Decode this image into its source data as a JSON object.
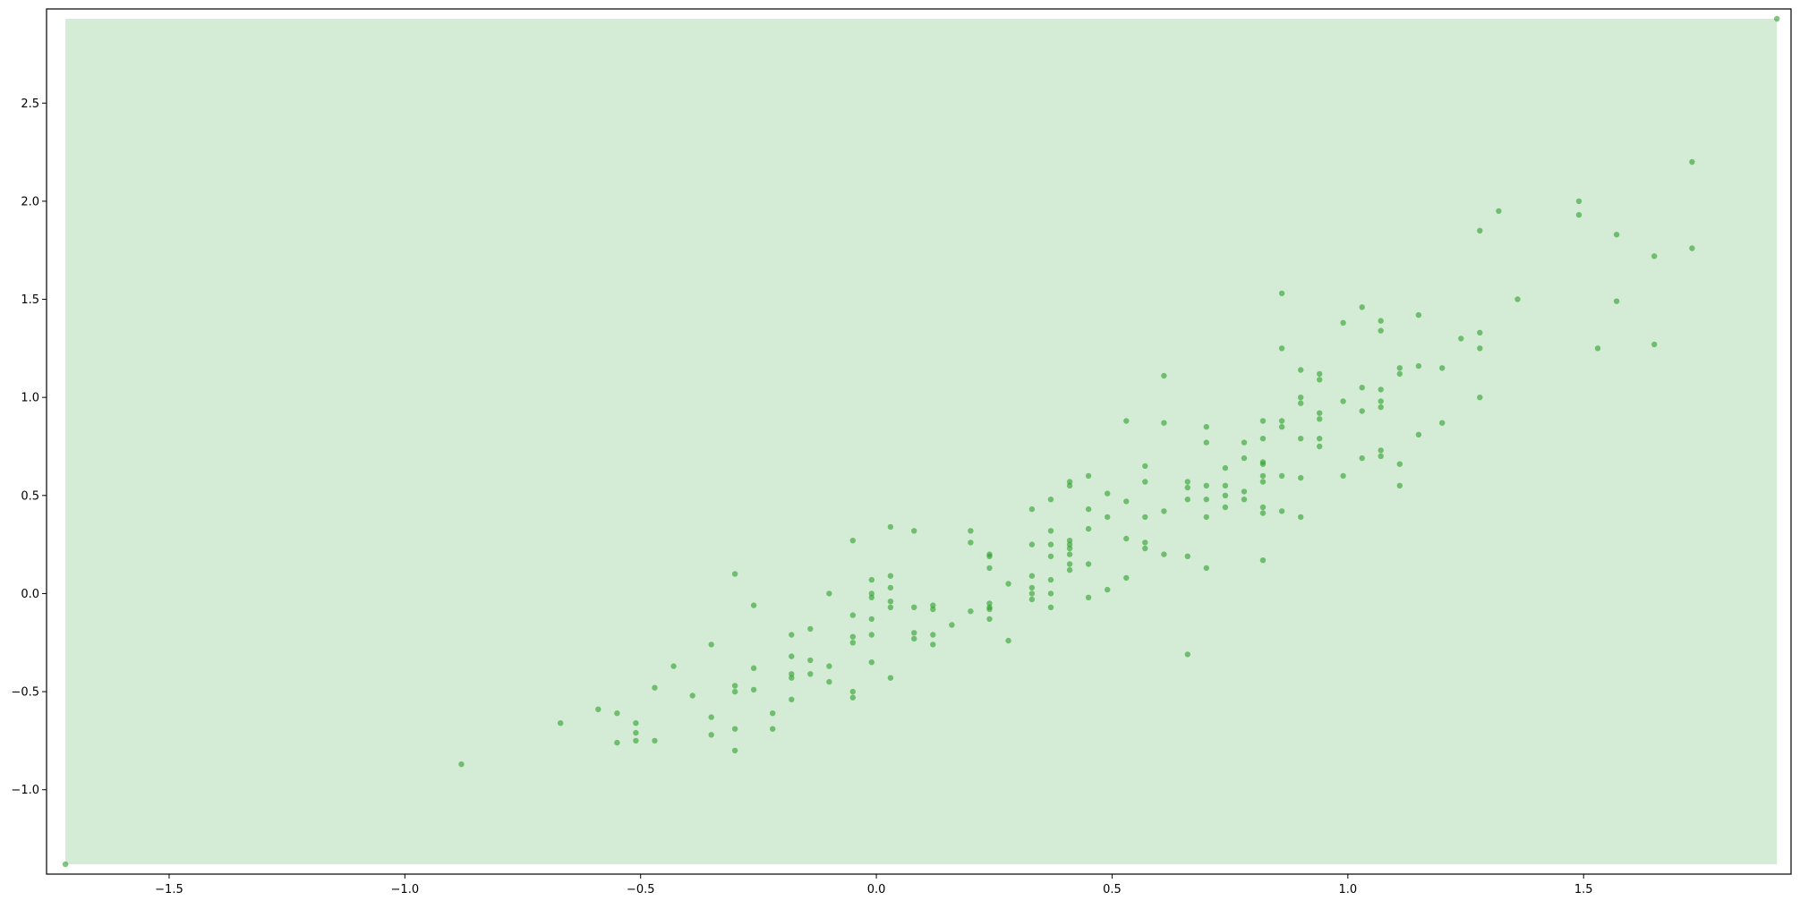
{
  "chart_data": {
    "type": "scatter",
    "title": "",
    "xlabel": "",
    "ylabel": "",
    "xlim": [
      -1.76,
      1.94
    ],
    "ylim": [
      -1.43,
      2.98
    ],
    "grid": false,
    "legend": "none",
    "x_ticks": [
      -1.5,
      -1.0,
      -0.5,
      0.0,
      0.5,
      1.0,
      1.5
    ],
    "x_tick_labels": [
      "−1.5",
      "−1.0",
      "−0.5",
      "0.0",
      "0.5",
      "1.0",
      "1.5"
    ],
    "y_ticks": [
      -1.0,
      -0.5,
      0.0,
      0.5,
      1.0,
      1.5,
      2.0,
      2.5
    ],
    "y_tick_labels": [
      "−1.0",
      "−0.5",
      "0.0",
      "0.5",
      "1.0",
      "1.5",
      "2.0",
      "2.5"
    ],
    "shaded_region": {
      "x": [
        -1.72,
        1.91
      ],
      "y": [
        -1.38,
        2.93
      ],
      "color": "#d4ecd5"
    },
    "colors": {
      "point": "#2ca02c",
      "region": "#d4ecd5"
    },
    "series": [
      {
        "values": [
          [
            -1.72,
            -1.38
          ],
          [
            1.91,
            2.93
          ],
          [
            -0.88,
            -0.87
          ],
          [
            -0.67,
            -0.66
          ],
          [
            -0.59,
            -0.59
          ],
          [
            -0.55,
            -0.61
          ],
          [
            -0.55,
            -0.76
          ],
          [
            -0.51,
            -0.66
          ],
          [
            -0.51,
            -0.71
          ],
          [
            -0.51,
            -0.75
          ],
          [
            -0.47,
            -0.48
          ],
          [
            -0.47,
            -0.75
          ],
          [
            -0.43,
            -0.37
          ],
          [
            -0.39,
            -0.52
          ],
          [
            -0.35,
            -0.26
          ],
          [
            -0.35,
            -0.63
          ],
          [
            -0.35,
            -0.72
          ],
          [
            -0.3,
            0.1
          ],
          [
            -0.3,
            -0.47
          ],
          [
            -0.3,
            -0.5
          ],
          [
            -0.3,
            -0.69
          ],
          [
            -0.3,
            -0.8
          ],
          [
            -0.26,
            -0.06
          ],
          [
            -0.26,
            -0.38
          ],
          [
            -0.26,
            -0.49
          ],
          [
            -0.22,
            -0.61
          ],
          [
            -0.22,
            -0.69
          ],
          [
            -0.18,
            -0.21
          ],
          [
            -0.18,
            -0.32
          ],
          [
            -0.18,
            -0.41
          ],
          [
            -0.18,
            -0.43
          ],
          [
            -0.18,
            -0.54
          ],
          [
            -0.14,
            -0.18
          ],
          [
            -0.14,
            -0.34
          ],
          [
            -0.14,
            -0.41
          ],
          [
            -0.1,
            0.0
          ],
          [
            -0.1,
            -0.37
          ],
          [
            -0.1,
            -0.45
          ],
          [
            -0.05,
            0.27
          ],
          [
            -0.05,
            -0.11
          ],
          [
            -0.05,
            -0.22
          ],
          [
            -0.05,
            -0.25
          ],
          [
            -0.05,
            -0.5
          ],
          [
            -0.05,
            -0.53
          ],
          [
            -0.01,
            0.07
          ],
          [
            -0.01,
            0.0
          ],
          [
            -0.01,
            -0.02
          ],
          [
            -0.01,
            -0.13
          ],
          [
            -0.01,
            -0.21
          ],
          [
            -0.01,
            -0.35
          ],
          [
            0.03,
            0.34
          ],
          [
            0.03,
            0.09
          ],
          [
            0.03,
            0.03
          ],
          [
            0.03,
            -0.04
          ],
          [
            0.03,
            -0.07
          ],
          [
            0.03,
            -0.43
          ],
          [
            0.08,
            0.32
          ],
          [
            0.08,
            -0.07
          ],
          [
            0.08,
            -0.2
          ],
          [
            0.08,
            -0.23
          ],
          [
            0.12,
            -0.06
          ],
          [
            0.12,
            -0.08
          ],
          [
            0.12,
            -0.21
          ],
          [
            0.12,
            -0.26
          ],
          [
            0.16,
            -0.16
          ],
          [
            0.2,
            0.32
          ],
          [
            0.2,
            0.26
          ],
          [
            0.2,
            -0.09
          ],
          [
            0.24,
            0.2
          ],
          [
            0.24,
            0.19
          ],
          [
            0.24,
            0.13
          ],
          [
            0.24,
            -0.05
          ],
          [
            0.24,
            -0.07
          ],
          [
            0.24,
            -0.08
          ],
          [
            0.24,
            -0.13
          ],
          [
            0.28,
            0.05
          ],
          [
            0.28,
            -0.24
          ],
          [
            0.33,
            0.43
          ],
          [
            0.33,
            0.25
          ],
          [
            0.33,
            0.09
          ],
          [
            0.33,
            0.03
          ],
          [
            0.33,
            0.0
          ],
          [
            0.33,
            -0.03
          ],
          [
            0.37,
            0.48
          ],
          [
            0.37,
            0.32
          ],
          [
            0.37,
            0.25
          ],
          [
            0.37,
            0.19
          ],
          [
            0.37,
            0.07
          ],
          [
            0.37,
            0.0
          ],
          [
            0.37,
            -0.07
          ],
          [
            0.41,
            0.57
          ],
          [
            0.41,
            0.55
          ],
          [
            0.41,
            0.27
          ],
          [
            0.41,
            0.25
          ],
          [
            0.41,
            0.23
          ],
          [
            0.41,
            0.2
          ],
          [
            0.41,
            0.15
          ],
          [
            0.41,
            0.12
          ],
          [
            0.45,
            0.6
          ],
          [
            0.45,
            0.43
          ],
          [
            0.45,
            0.33
          ],
          [
            0.45,
            0.15
          ],
          [
            0.45,
            -0.02
          ],
          [
            0.49,
            0.51
          ],
          [
            0.49,
            0.39
          ],
          [
            0.49,
            0.02
          ],
          [
            0.53,
            0.88
          ],
          [
            0.53,
            0.47
          ],
          [
            0.53,
            0.28
          ],
          [
            0.53,
            0.08
          ],
          [
            0.57,
            0.65
          ],
          [
            0.57,
            0.57
          ],
          [
            0.57,
            0.39
          ],
          [
            0.57,
            0.26
          ],
          [
            0.57,
            0.23
          ],
          [
            0.61,
            1.11
          ],
          [
            0.61,
            0.87
          ],
          [
            0.61,
            0.42
          ],
          [
            0.61,
            0.2
          ],
          [
            0.66,
            0.57
          ],
          [
            0.66,
            0.54
          ],
          [
            0.66,
            0.48
          ],
          [
            0.66,
            0.19
          ],
          [
            0.66,
            -0.31
          ],
          [
            0.7,
            0.85
          ],
          [
            0.7,
            0.77
          ],
          [
            0.7,
            0.55
          ],
          [
            0.7,
            0.48
          ],
          [
            0.7,
            0.39
          ],
          [
            0.7,
            0.13
          ],
          [
            0.74,
            0.64
          ],
          [
            0.74,
            0.55
          ],
          [
            0.74,
            0.5
          ],
          [
            0.74,
            0.44
          ],
          [
            0.78,
            0.77
          ],
          [
            0.78,
            0.69
          ],
          [
            0.78,
            0.52
          ],
          [
            0.78,
            0.48
          ],
          [
            0.82,
            0.88
          ],
          [
            0.82,
            0.79
          ],
          [
            0.82,
            0.67
          ],
          [
            0.82,
            0.66
          ],
          [
            0.82,
            0.6
          ],
          [
            0.82,
            0.57
          ],
          [
            0.82,
            0.44
          ],
          [
            0.82,
            0.41
          ],
          [
            0.82,
            0.17
          ],
          [
            0.86,
            1.53
          ],
          [
            0.86,
            1.25
          ],
          [
            0.86,
            0.88
          ],
          [
            0.86,
            0.85
          ],
          [
            0.86,
            0.6
          ],
          [
            0.86,
            0.42
          ],
          [
            0.9,
            1.14
          ],
          [
            0.9,
            1.0
          ],
          [
            0.9,
            0.97
          ],
          [
            0.9,
            0.79
          ],
          [
            0.9,
            0.59
          ],
          [
            0.9,
            0.39
          ],
          [
            0.94,
            1.12
          ],
          [
            0.94,
            1.09
          ],
          [
            0.94,
            0.92
          ],
          [
            0.94,
            0.89
          ],
          [
            0.94,
            0.79
          ],
          [
            0.94,
            0.75
          ],
          [
            0.99,
            1.38
          ],
          [
            0.99,
            0.98
          ],
          [
            0.99,
            0.6
          ],
          [
            1.03,
            1.46
          ],
          [
            1.03,
            1.05
          ],
          [
            1.03,
            0.93
          ],
          [
            1.03,
            0.69
          ],
          [
            1.07,
            1.39
          ],
          [
            1.07,
            1.34
          ],
          [
            1.07,
            1.04
          ],
          [
            1.07,
            0.98
          ],
          [
            1.07,
            0.95
          ],
          [
            1.07,
            0.73
          ],
          [
            1.07,
            0.7
          ],
          [
            1.11,
            1.15
          ],
          [
            1.11,
            1.12
          ],
          [
            1.11,
            0.66
          ],
          [
            1.11,
            0.55
          ],
          [
            1.15,
            1.42
          ],
          [
            1.15,
            1.16
          ],
          [
            1.15,
            0.81
          ],
          [
            1.2,
            1.15
          ],
          [
            1.2,
            0.87
          ],
          [
            1.24,
            1.3
          ],
          [
            1.28,
            1.85
          ],
          [
            1.28,
            1.33
          ],
          [
            1.28,
            1.25
          ],
          [
            1.28,
            1.0
          ],
          [
            1.32,
            1.95
          ],
          [
            1.36,
            1.5
          ],
          [
            1.49,
            2.0
          ],
          [
            1.49,
            1.93
          ],
          [
            1.53,
            1.25
          ],
          [
            1.57,
            1.83
          ],
          [
            1.57,
            1.49
          ],
          [
            1.65,
            1.72
          ],
          [
            1.65,
            1.27
          ],
          [
            1.73,
            2.2
          ],
          [
            1.73,
            1.76
          ]
        ]
      }
    ]
  }
}
